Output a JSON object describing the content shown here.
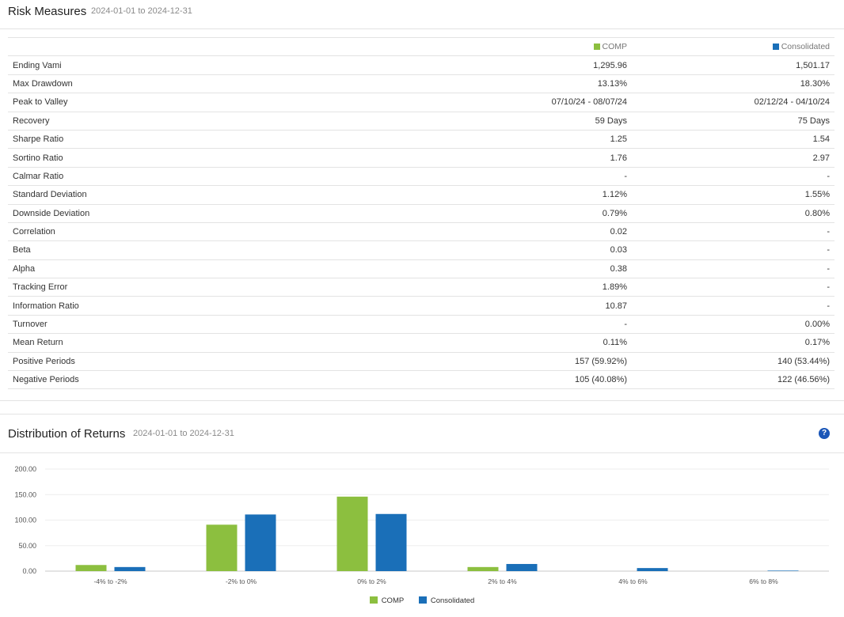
{
  "risk": {
    "title": "Risk Measures",
    "date_range": "2024-01-01 to 2024-12-31",
    "columns": [
      {
        "name": "COMP",
        "color": "#8cbf3f"
      },
      {
        "name": "Consolidated",
        "color": "#1a6fb8"
      }
    ],
    "rows": [
      {
        "label": "Ending Vami",
        "comp": "1,295.96",
        "consolidated": "1,501.17"
      },
      {
        "label": "Max Drawdown",
        "comp": "13.13%",
        "consolidated": "18.30%"
      },
      {
        "label": "Peak to Valley",
        "comp": "07/10/24 - 08/07/24",
        "consolidated": "02/12/24 - 04/10/24"
      },
      {
        "label": "Recovery",
        "comp": "59 Days",
        "consolidated": "75 Days"
      },
      {
        "label": "Sharpe Ratio",
        "comp": "1.25",
        "consolidated": "1.54"
      },
      {
        "label": "Sortino Ratio",
        "comp": "1.76",
        "consolidated": "2.97"
      },
      {
        "label": "Calmar Ratio",
        "comp": "-",
        "consolidated": "-"
      },
      {
        "label": "Standard Deviation",
        "comp": "1.12%",
        "consolidated": "1.55%"
      },
      {
        "label": "Downside Deviation",
        "comp": "0.79%",
        "consolidated": "0.80%"
      },
      {
        "label": "Correlation",
        "comp": "0.02",
        "consolidated": "-"
      },
      {
        "label": "Beta",
        "comp": "0.03",
        "consolidated": "-"
      },
      {
        "label": "Alpha",
        "comp": "0.38",
        "consolidated": "-"
      },
      {
        "label": "Tracking Error",
        "comp": "1.89%",
        "consolidated": "-"
      },
      {
        "label": "Information Ratio",
        "comp": "10.87",
        "consolidated": "-"
      },
      {
        "label": "Turnover",
        "comp": "-",
        "consolidated": "0.00%"
      },
      {
        "label": "Mean Return",
        "comp": "0.11%",
        "consolidated": "0.17%"
      },
      {
        "label": "Positive Periods",
        "comp": "157 (59.92%)",
        "consolidated": "140 (53.44%)"
      },
      {
        "label": "Negative Periods",
        "comp": "105 (40.08%)",
        "consolidated": "122 (46.56%)"
      }
    ]
  },
  "distribution": {
    "title": "Distribution of Returns",
    "date_range": "2024-01-01 to 2024-12-31",
    "help_icon": "question-circle-icon",
    "help_glyph": "?"
  },
  "chart_data": {
    "type": "bar",
    "categories": [
      "-4% to -2%",
      "-2% to 0%",
      "0% to 2%",
      "2% to 4%",
      "4% to 6%",
      "6% to 8%"
    ],
    "series": [
      {
        "name": "COMP",
        "color": "#8cbf3f",
        "values": [
          12,
          91,
          146,
          8,
          0,
          0
        ]
      },
      {
        "name": "Consolidated",
        "color": "#1a6fb8",
        "values": [
          8,
          111,
          112,
          14,
          6,
          1
        ]
      }
    ],
    "yticks": [
      "0.00",
      "50.00",
      "100.00",
      "150.00",
      "200.00"
    ],
    "ylim": [
      0,
      200
    ],
    "grid": true,
    "legend": "bottom-center"
  }
}
